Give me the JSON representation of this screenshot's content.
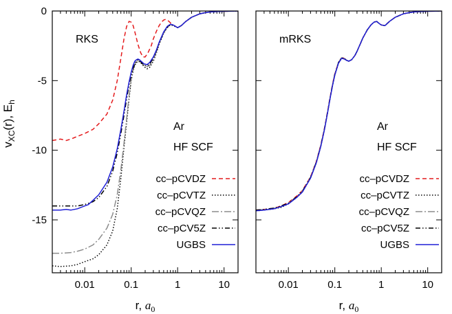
{
  "chart_data": {
    "type": "line",
    "ylabel": "vXC(r), Eh",
    "ylabel_parts": {
      "v": "v",
      "sub": "XC",
      "mid": "(r),  E",
      "sub2": "h"
    },
    "xlabel": "r,  a0",
    "xlabel_parts": {
      "main": "r,  ",
      "italic": "a",
      "sub": "0"
    },
    "xscale": "log",
    "xlim": [
      0.002,
      20
    ],
    "ylim": [
      -18.8,
      0
    ],
    "xticks": [
      {
        "v": 0.01,
        "label": "0.01"
      },
      {
        "v": 0.1,
        "label": "0.1"
      },
      {
        "v": 1,
        "label": "1"
      },
      {
        "v": 10,
        "label": "10"
      }
    ],
    "yticks": [
      {
        "v": 0,
        "label": "0"
      },
      {
        "v": -5,
        "label": "-5"
      },
      {
        "v": -10,
        "label": "-10"
      },
      {
        "v": -15,
        "label": "-15"
      }
    ],
    "panels": [
      {
        "name": "RKS",
        "annotation": [
          "Ar",
          "HF SCF"
        ],
        "legend_position": "bottom-right",
        "series": [
          {
            "name": "cc–pCVDZ",
            "color": "#e41a1c",
            "dash": "6,4",
            "x": [
              0.002,
              0.003,
              0.004,
              0.005,
              0.007,
              0.01,
              0.015,
              0.02,
              0.03,
              0.04,
              0.05,
              0.06,
              0.07,
              0.08,
              0.09,
              0.1,
              0.11,
              0.12,
              0.14,
              0.16,
              0.18,
              0.2,
              0.23,
              0.27,
              0.3,
              0.35,
              0.4,
              0.45,
              0.5,
              0.55,
              0.6,
              0.65,
              0.7,
              0.75,
              0.8,
              0.9,
              1.0,
              1.2,
              1.5,
              2,
              3,
              4,
              5,
              7,
              10,
              15,
              20
            ],
            "y": [
              -9.3,
              -9.2,
              -9.3,
              -9.2,
              -9.0,
              -8.8,
              -8.5,
              -8.1,
              -7.4,
              -6.4,
              -5.0,
              -3.4,
              -2.0,
              -1.1,
              -0.75,
              -0.8,
              -1.05,
              -1.5,
              -2.4,
              -3.0,
              -3.3,
              -3.3,
              -3.0,
              -2.5,
              -2.0,
              -1.45,
              -1.05,
              -0.8,
              -0.65,
              -0.6,
              -0.65,
              -0.75,
              -0.85,
              -0.95,
              -1.0,
              -1.1,
              -1.2,
              -1.05,
              -0.75,
              -0.45,
              -0.2,
              -0.12,
              -0.07,
              -0.04,
              -0.02,
              -0.01,
              0
            ]
          },
          {
            "name": "cc–pCVTZ",
            "color": "#000000",
            "dash": "1.5,2.5",
            "x": [
              0.002,
              0.003,
              0.005,
              0.007,
              0.01,
              0.015,
              0.02,
              0.03,
              0.04,
              0.05,
              0.06,
              0.07,
              0.08,
              0.09,
              0.1,
              0.11,
              0.12,
              0.13,
              0.14,
              0.15,
              0.17,
              0.19,
              0.22,
              0.25,
              0.3,
              0.35,
              0.4,
              0.5,
              0.6,
              0.7,
              0.8,
              1.0,
              1.2,
              1.5,
              2,
              3,
              4,
              5,
              7,
              10,
              15,
              20
            ],
            "y": [
              -18.3,
              -18.35,
              -18.3,
              -18.2,
              -18.0,
              -17.8,
              -17.5,
              -16.8,
              -15.8,
              -14.2,
              -12.0,
              -9.8,
              -8.0,
              -6.3,
              -5.0,
              -4.3,
              -3.9,
              -3.7,
              -3.6,
              -3.65,
              -3.8,
              -4.0,
              -4.15,
              -4.05,
              -3.6,
              -3.0,
              -2.4,
              -1.6,
              -1.2,
              -1.0,
              -1.05,
              -1.2,
              -1.05,
              -0.75,
              -0.45,
              -0.2,
              -0.12,
              -0.07,
              -0.04,
              -0.02,
              -0.01,
              0
            ]
          },
          {
            "name": "cc–pCVQZ",
            "color": "#8c8c8c",
            "dash": "10,3,2,3",
            "x": [
              0.002,
              0.003,
              0.005,
              0.007,
              0.01,
              0.015,
              0.02,
              0.03,
              0.04,
              0.05,
              0.06,
              0.07,
              0.08,
              0.09,
              0.1,
              0.11,
              0.12,
              0.13,
              0.14,
              0.15,
              0.17,
              0.19,
              0.22,
              0.25,
              0.3,
              0.35,
              0.4,
              0.5,
              0.6,
              0.7,
              0.8,
              1.0,
              1.2,
              1.5,
              2,
              3,
              4,
              5,
              7,
              10,
              15,
              20
            ],
            "y": [
              -17.4,
              -17.4,
              -17.35,
              -17.25,
              -17.1,
              -16.8,
              -16.4,
              -15.6,
              -14.6,
              -13.2,
              -11.4,
              -9.5,
              -7.7,
              -6.1,
              -4.9,
              -4.2,
              -3.8,
              -3.6,
              -3.5,
              -3.55,
              -3.7,
              -3.9,
              -4.0,
              -3.9,
              -3.5,
              -2.9,
              -2.3,
              -1.55,
              -1.15,
              -0.95,
              -1.0,
              -1.2,
              -1.05,
              -0.75,
              -0.45,
              -0.2,
              -0.12,
              -0.07,
              -0.04,
              -0.02,
              -0.01,
              0
            ]
          },
          {
            "name": "cc–pCV5Z",
            "color": "#000000",
            "dash": "7,3,1.5,3,1.5,3",
            "x": [
              0.002,
              0.003,
              0.005,
              0.007,
              0.01,
              0.015,
              0.02,
              0.03,
              0.04,
              0.05,
              0.06,
              0.07,
              0.08,
              0.09,
              0.1,
              0.11,
              0.12,
              0.13,
              0.14,
              0.15,
              0.17,
              0.19,
              0.22,
              0.25,
              0.3,
              0.35,
              0.4,
              0.5,
              0.6,
              0.7,
              0.8,
              1.0,
              1.2,
              1.5,
              2,
              3,
              4,
              5,
              7,
              10,
              15,
              20
            ],
            "y": [
              -14.0,
              -14.0,
              -14.0,
              -14.0,
              -13.9,
              -13.7,
              -13.4,
              -12.6,
              -11.5,
              -10.2,
              -8.8,
              -7.5,
              -6.3,
              -5.3,
              -4.6,
              -4.1,
              -3.8,
              -3.6,
              -3.5,
              -3.55,
              -3.75,
              -3.9,
              -3.95,
              -3.8,
              -3.4,
              -2.85,
              -2.3,
              -1.55,
              -1.15,
              -0.95,
              -1.0,
              -1.2,
              -1.05,
              -0.75,
              -0.45,
              -0.2,
              -0.12,
              -0.07,
              -0.04,
              -0.02,
              -0.01,
              0
            ]
          },
          {
            "name": "UGBS",
            "color": "#1f1fd6",
            "dash": "",
            "x": [
              0.002,
              0.003,
              0.004,
              0.005,
              0.007,
              0.01,
              0.012,
              0.015,
              0.02,
              0.03,
              0.04,
              0.05,
              0.06,
              0.07,
              0.08,
              0.09,
              0.1,
              0.11,
              0.12,
              0.13,
              0.14,
              0.15,
              0.17,
              0.19,
              0.22,
              0.25,
              0.3,
              0.35,
              0.4,
              0.5,
              0.6,
              0.7,
              0.8,
              1.0,
              1.2,
              1.5,
              2,
              3,
              4,
              5,
              7,
              10,
              15,
              20
            ],
            "y": [
              -14.3,
              -14.3,
              -14.25,
              -14.3,
              -14.2,
              -14.0,
              -13.9,
              -13.6,
              -13.2,
              -12.3,
              -11.2,
              -9.9,
              -8.5,
              -7.2,
              -6.0,
              -5.1,
              -4.4,
              -3.9,
              -3.6,
              -3.5,
              -3.45,
              -3.5,
              -3.65,
              -3.8,
              -3.85,
              -3.7,
              -3.3,
              -2.8,
              -2.25,
              -1.5,
              -1.1,
              -0.95,
              -1.0,
              -1.2,
              -1.05,
              -0.75,
              -0.45,
              -0.2,
              -0.12,
              -0.07,
              -0.04,
              -0.02,
              -0.01,
              0
            ]
          }
        ]
      },
      {
        "name": "mRKS",
        "annotation": [
          "Ar",
          "HF SCF"
        ],
        "legend_position": "bottom-right",
        "series": [
          {
            "name": "cc–pCVDZ",
            "color": "#e41a1c",
            "dash": "6,4",
            "x": [
              0.002,
              0.003,
              0.005,
              0.007,
              0.01,
              0.015,
              0.02,
              0.03,
              0.04,
              0.05,
              0.06,
              0.07,
              0.08,
              0.09,
              0.1,
              0.12,
              0.14,
              0.16,
              0.18,
              0.2,
              0.23,
              0.27,
              0.3,
              0.35,
              0.4,
              0.5,
              0.6,
              0.7,
              0.8,
              0.9,
              1.0,
              1.2,
              1.5,
              2,
              3,
              4,
              5,
              7,
              10,
              15,
              20
            ],
            "y": [
              -14.3,
              -14.25,
              -14.15,
              -14.0,
              -13.75,
              -13.3,
              -12.9,
              -11.9,
              -10.8,
              -9.6,
              -8.4,
              -7.2,
              -6.1,
              -5.2,
              -4.5,
              -3.7,
              -3.35,
              -3.4,
              -3.55,
              -3.6,
              -3.5,
              -3.2,
              -2.9,
              -2.4,
              -1.95,
              -1.35,
              -1.0,
              -0.8,
              -0.75,
              -0.9,
              -1.0,
              -1.05,
              -0.75,
              -0.45,
              -0.2,
              -0.12,
              -0.07,
              -0.04,
              -0.02,
              -0.01,
              0
            ]
          },
          {
            "name": "cc–pCVTZ",
            "color": "#000000",
            "dash": "1.5,2.5",
            "x": [
              0.002,
              0.003,
              0.005,
              0.007,
              0.01,
              0.015,
              0.02,
              0.03,
              0.04,
              0.05,
              0.06,
              0.07,
              0.08,
              0.09,
              0.1,
              0.12,
              0.14,
              0.16,
              0.18,
              0.2,
              0.23,
              0.27,
              0.3,
              0.35,
              0.4,
              0.5,
              0.6,
              0.7,
              0.8,
              0.9,
              1.0,
              1.2,
              1.5,
              2,
              3,
              4,
              5,
              7,
              10,
              15,
              20
            ],
            "y": [
              -14.35,
              -14.3,
              -14.2,
              -14.1,
              -13.85,
              -13.4,
              -13.0,
              -12.0,
              -10.9,
              -9.7,
              -8.5,
              -7.3,
              -6.2,
              -5.3,
              -4.6,
              -3.75,
              -3.4,
              -3.45,
              -3.55,
              -3.6,
              -3.5,
              -3.2,
              -2.9,
              -2.4,
              -1.95,
              -1.35,
              -1.0,
              -0.8,
              -0.75,
              -0.9,
              -1.0,
              -1.05,
              -0.75,
              -0.45,
              -0.2,
              -0.12,
              -0.07,
              -0.04,
              -0.02,
              -0.01,
              0
            ]
          },
          {
            "name": "cc–pCVQZ",
            "color": "#8c8c8c",
            "dash": "10,3,2,3",
            "x": [
              0.002,
              0.003,
              0.005,
              0.007,
              0.01,
              0.015,
              0.02,
              0.03,
              0.04,
              0.05,
              0.06,
              0.07,
              0.08,
              0.09,
              0.1,
              0.12,
              0.14,
              0.16,
              0.18,
              0.2,
              0.23,
              0.27,
              0.3,
              0.35,
              0.4,
              0.5,
              0.6,
              0.7,
              0.8,
              0.9,
              1.0,
              1.2,
              1.5,
              2,
              3,
              4,
              5,
              7,
              10,
              15,
              20
            ],
            "y": [
              -14.3,
              -14.25,
              -14.15,
              -14.05,
              -13.8,
              -13.35,
              -12.95,
              -11.95,
              -10.85,
              -9.65,
              -8.45,
              -7.25,
              -6.15,
              -5.25,
              -4.55,
              -3.7,
              -3.35,
              -3.4,
              -3.55,
              -3.6,
              -3.5,
              -3.2,
              -2.9,
              -2.4,
              -1.95,
              -1.35,
              -1.0,
              -0.8,
              -0.75,
              -0.9,
              -1.0,
              -1.05,
              -0.75,
              -0.45,
              -0.2,
              -0.12,
              -0.07,
              -0.04,
              -0.02,
              -0.01,
              0
            ]
          },
          {
            "name": "cc–pCV5Z",
            "color": "#000000",
            "dash": "7,3,1.5,3,1.5,3",
            "x": [
              0.002,
              0.003,
              0.005,
              0.007,
              0.01,
              0.015,
              0.02,
              0.03,
              0.04,
              0.05,
              0.06,
              0.07,
              0.08,
              0.09,
              0.1,
              0.12,
              0.14,
              0.16,
              0.18,
              0.2,
              0.23,
              0.27,
              0.3,
              0.35,
              0.4,
              0.5,
              0.6,
              0.7,
              0.8,
              0.9,
              1.0,
              1.2,
              1.5,
              2,
              3,
              4,
              5,
              7,
              10,
              15,
              20
            ],
            "y": [
              -14.3,
              -14.25,
              -14.15,
              -14.0,
              -13.8,
              -13.35,
              -12.95,
              -11.95,
              -10.85,
              -9.65,
              -8.45,
              -7.25,
              -6.15,
              -5.25,
              -4.55,
              -3.7,
              -3.35,
              -3.4,
              -3.55,
              -3.6,
              -3.5,
              -3.2,
              -2.9,
              -2.4,
              -1.95,
              -1.35,
              -1.0,
              -0.8,
              -0.75,
              -0.9,
              -1.0,
              -1.05,
              -0.75,
              -0.45,
              -0.2,
              -0.12,
              -0.07,
              -0.04,
              -0.02,
              -0.01,
              0
            ]
          },
          {
            "name": "UGBS",
            "color": "#1f1fd6",
            "dash": "",
            "x": [
              0.002,
              0.003,
              0.005,
              0.007,
              0.01,
              0.015,
              0.02,
              0.03,
              0.04,
              0.05,
              0.06,
              0.07,
              0.08,
              0.09,
              0.1,
              0.12,
              0.14,
              0.16,
              0.18,
              0.2,
              0.23,
              0.27,
              0.3,
              0.35,
              0.4,
              0.5,
              0.6,
              0.7,
              0.8,
              0.9,
              1.0,
              1.2,
              1.5,
              2,
              3,
              4,
              5,
              7,
              10,
              15,
              20
            ],
            "y": [
              -14.35,
              -14.3,
              -14.2,
              -14.05,
              -13.85,
              -13.4,
              -13.0,
              -12.0,
              -10.9,
              -9.7,
              -8.5,
              -7.3,
              -6.2,
              -5.3,
              -4.6,
              -3.75,
              -3.4,
              -3.45,
              -3.55,
              -3.6,
              -3.5,
              -3.2,
              -2.9,
              -2.4,
              -1.95,
              -1.35,
              -1.0,
              -0.8,
              -0.75,
              -0.9,
              -1.0,
              -1.05,
              -0.75,
              -0.45,
              -0.2,
              -0.12,
              -0.07,
              -0.04,
              -0.02,
              -0.01,
              0
            ]
          }
        ]
      }
    ]
  }
}
